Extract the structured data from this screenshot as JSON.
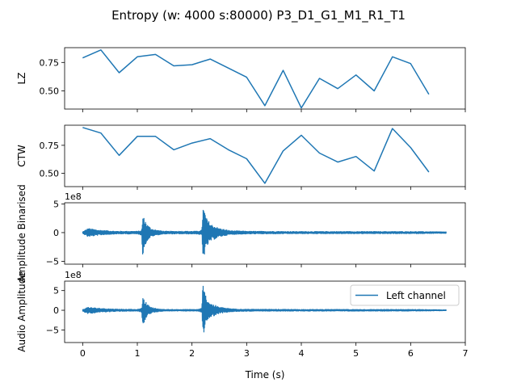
{
  "title": "Entropy (w: 4000 s:80000) P3_D1_G1_M1_R1_T1",
  "xlabel": "Time (s)",
  "chart_data": [
    {
      "type": "line",
      "ylabel": "LZ",
      "xlim": [
        -0.33,
        7.0
      ],
      "ylim": [
        0.34,
        0.88
      ],
      "yticks": [
        "0.50",
        "0.75"
      ],
      "ytick_values": [
        0.5,
        0.75
      ],
      "x": [
        0,
        0.333,
        0.667,
        1.0,
        1.333,
        1.667,
        2.0,
        2.333,
        2.667,
        3.0,
        3.333,
        3.667,
        4.0,
        4.333,
        4.667,
        5.0,
        5.333,
        5.667,
        6.0,
        6.333
      ],
      "values": [
        0.79,
        0.86,
        0.66,
        0.8,
        0.82,
        0.72,
        0.73,
        0.78,
        0.7,
        0.62,
        0.37,
        0.68,
        0.35,
        0.61,
        0.52,
        0.64,
        0.5,
        0.8,
        0.74,
        0.47
      ]
    },
    {
      "type": "line",
      "ylabel": "CTW",
      "xlim": [
        -0.33,
        7.0
      ],
      "ylim": [
        0.38,
        0.93
      ],
      "yticks": [
        "0.50",
        "0.75"
      ],
      "ytick_values": [
        0.5,
        0.75
      ],
      "x": [
        0,
        0.333,
        0.667,
        1.0,
        1.333,
        1.667,
        2.0,
        2.333,
        2.667,
        3.0,
        3.333,
        3.667,
        4.0,
        4.333,
        4.667,
        5.0,
        5.333,
        5.667,
        6.0,
        6.333
      ],
      "values": [
        0.91,
        0.86,
        0.66,
        0.83,
        0.83,
        0.71,
        0.77,
        0.81,
        0.71,
        0.63,
        0.41,
        0.7,
        0.84,
        0.68,
        0.6,
        0.65,
        0.52,
        0.9,
        0.73,
        0.51
      ]
    },
    {
      "type": "line",
      "ylabel": "Amplitude Binarised",
      "offset_text": "1e8",
      "xlim": [
        -0.33,
        7.0
      ],
      "ylim": [
        -5.5,
        5.2
      ],
      "yticks": [
        "−5",
        "0",
        "5"
      ],
      "ytick_values": [
        -5,
        0,
        5
      ],
      "series": [
        {
          "envelope_time": [
            0,
            0.1,
            0.3,
            0.6,
            1.0,
            1.08,
            1.1,
            1.13,
            1.18,
            1.25,
            1.35,
            1.5,
            1.8,
            2.1,
            2.18,
            2.2,
            2.22,
            2.27,
            2.35,
            2.5,
            2.7,
            3.0,
            4.0,
            5.0,
            6.0,
            6.65
          ],
          "envelope_max": [
            0.2,
            0.8,
            0.5,
            0.3,
            0.3,
            0.4,
            3.0,
            2.5,
            1.5,
            0.8,
            0.5,
            0.3,
            0.3,
            0.3,
            0.5,
            4.6,
            4.2,
            2.5,
            1.5,
            0.8,
            0.4,
            0.3,
            0.25,
            0.25,
            0.25,
            0.2
          ],
          "envelope_min": [
            -0.2,
            -0.8,
            -0.5,
            -0.3,
            -0.3,
            -0.5,
            -4.8,
            -2.5,
            -1.5,
            -0.8,
            -0.5,
            -0.3,
            -0.3,
            -0.3,
            -0.5,
            -5.2,
            -4.2,
            -2.5,
            -1.5,
            -0.8,
            -0.4,
            -0.3,
            -0.25,
            -0.25,
            -0.25,
            -0.2
          ]
        }
      ]
    },
    {
      "type": "line",
      "ylabel": "Audio Amplitude",
      "offset_text": "1e8",
      "xlim": [
        -0.33,
        7.0
      ],
      "ylim": [
        -8.2,
        7.4
      ],
      "yticks": [
        "−5",
        "0",
        "5"
      ],
      "ytick_values": [
        -5,
        0,
        5
      ],
      "legend": {
        "entries": [
          "Left channel"
        ],
        "placement": "upper right"
      },
      "series": [
        {
          "name": "Left channel",
          "envelope_time": [
            0,
            0.1,
            0.3,
            0.6,
            1.0,
            1.08,
            1.1,
            1.13,
            1.18,
            1.25,
            1.35,
            1.5,
            1.8,
            2.1,
            2.18,
            2.2,
            2.22,
            2.27,
            2.35,
            2.5,
            2.7,
            3.0,
            4.0,
            5.0,
            6.0,
            6.65
          ],
          "envelope_max": [
            0.3,
            0.9,
            0.6,
            0.4,
            0.3,
            0.6,
            3.5,
            2.8,
            1.6,
            0.9,
            0.5,
            0.3,
            0.3,
            0.3,
            0.6,
            7.2,
            5.5,
            3.0,
            1.8,
            0.9,
            0.5,
            0.35,
            0.3,
            0.3,
            0.3,
            0.2
          ],
          "envelope_min": [
            -0.3,
            -1.0,
            -0.6,
            -0.4,
            -0.3,
            -0.6,
            -5.8,
            -3.0,
            -1.6,
            -0.9,
            -0.5,
            -0.3,
            -0.3,
            -0.3,
            -0.6,
            -7.5,
            -5.5,
            -3.0,
            -1.8,
            -0.9,
            -0.5,
            -0.35,
            -0.3,
            -0.3,
            -0.3,
            -0.2
          ]
        }
      ]
    }
  ],
  "xticks": [
    "0",
    "1",
    "2",
    "3",
    "4",
    "5",
    "6",
    "7"
  ],
  "xtick_values": [
    0,
    1,
    2,
    3,
    4,
    5,
    6,
    7
  ]
}
